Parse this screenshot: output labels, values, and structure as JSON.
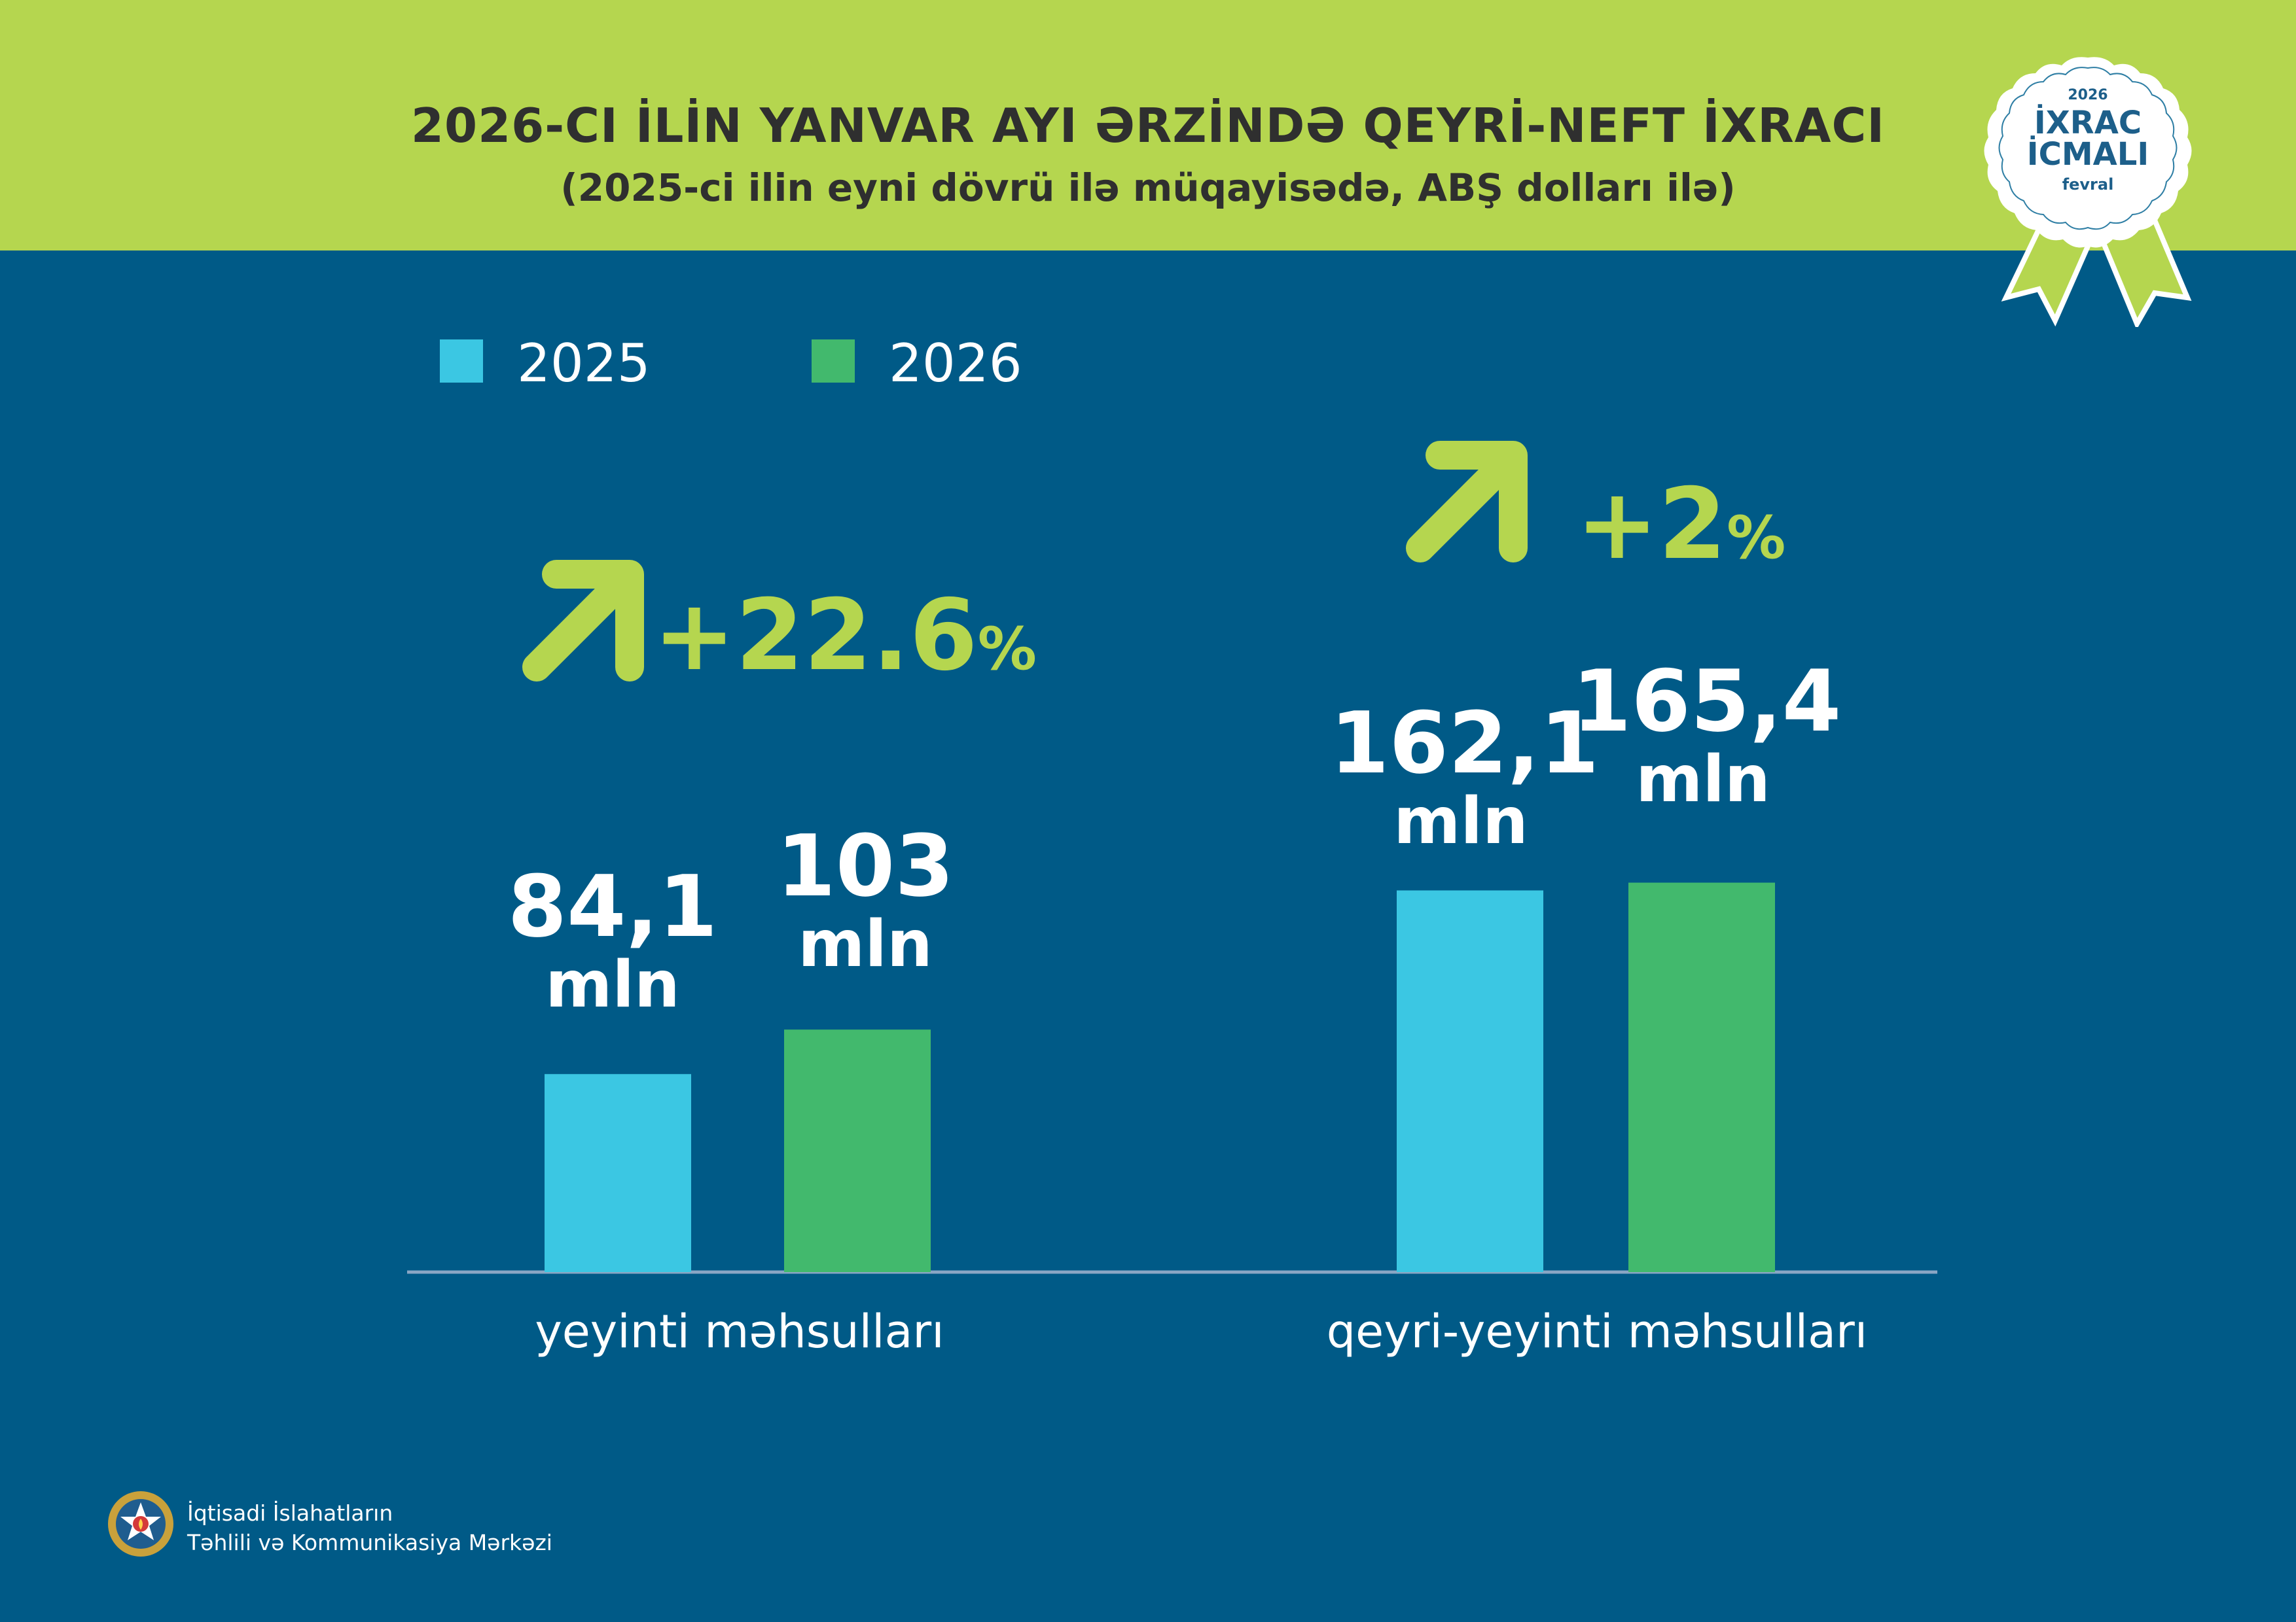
{
  "header": {
    "title": "2026-CI İLİN YANVAR AYI ƏRZİNDƏ QEYRİ-NEFT İXRACI",
    "subtitle": "(2025-ci ilin eyni dövrü ilə müqayisədə, ABŞ dolları ilə)"
  },
  "badge": {
    "year": "2026",
    "line1": "İXRAC",
    "line2": "İCMALI",
    "month": "fevral"
  },
  "colors": {
    "background": "#005a87",
    "header": "#b5d64f",
    "series_2025": "#3bc7e3",
    "series_2026": "#42b96d",
    "accent": "#b5d64f"
  },
  "chart_data": {
    "type": "bar",
    "categories": [
      "yeyinti məhsulları",
      "qeyri-yeyinti məhsulları"
    ],
    "series": [
      {
        "name": "2025",
        "values": [
          84.1,
          162.1
        ],
        "labels": [
          "84,1",
          "162,1"
        ]
      },
      {
        "name": "2026",
        "values": [
          103,
          165.4
        ],
        "labels": [
          "103",
          "165,4"
        ]
      }
    ],
    "unit": "mln",
    "changes": [
      {
        "value": "+22.6",
        "suffix": "%"
      },
      {
        "value": "+2",
        "suffix": "%"
      }
    ],
    "legend": "top-left",
    "grid": false
  },
  "footer": {
    "org_line1": "İqtisadi İslahatların",
    "org_line2": "Təhlili və Kommunikasiya Mərkəzi"
  }
}
